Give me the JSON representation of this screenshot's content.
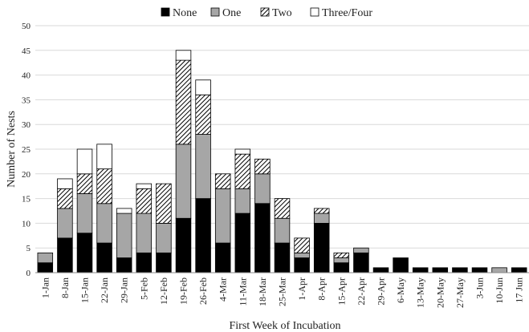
{
  "chart_data": {
    "type": "bar",
    "stacked": true,
    "title": "",
    "xlabel": "First Week of Incubation",
    "ylabel": "Number of Nests",
    "ylim": [
      0,
      50
    ],
    "yticks": [
      0,
      5,
      10,
      15,
      20,
      25,
      30,
      35,
      40,
      45,
      50
    ],
    "grid": true,
    "legend_position": "top",
    "categories": [
      "1-Jan",
      "8-Jan",
      "15-Jan",
      "22-Jan",
      "29-Jan",
      "5-Feb",
      "12-Feb",
      "19-Feb",
      "26-Feb",
      "4-Mar",
      "11-Mar",
      "18-Mar",
      "25-Mar",
      "1-Apr",
      "8-Apr",
      "15-Apr",
      "22-Apr",
      "29-Apr",
      "6-May",
      "13-May",
      "20-May",
      "27-May",
      "3-Jun",
      "10-Jun",
      "17 Jun"
    ],
    "series": [
      {
        "name": "None",
        "fill": "solid",
        "color": "#000000",
        "values": [
          2,
          7,
          8,
          6,
          3,
          4,
          4,
          11,
          15,
          6,
          12,
          14,
          6,
          3,
          10,
          2,
          4,
          1,
          3,
          1,
          1,
          1,
          1,
          0,
          1
        ]
      },
      {
        "name": "One",
        "fill": "solid",
        "color": "#a6a6a6",
        "values": [
          2,
          6,
          8,
          8,
          9,
          8,
          6,
          15,
          13,
          11,
          5,
          6,
          5,
          1,
          2,
          1,
          1,
          0,
          0,
          0,
          0,
          0,
          0,
          1,
          0
        ]
      },
      {
        "name": "Two",
        "fill": "hatch",
        "color": "#000000",
        "values": [
          0,
          4,
          4,
          7,
          0,
          5,
          8,
          17,
          8,
          3,
          7,
          3,
          4,
          3,
          1,
          1,
          0,
          0,
          0,
          0,
          0,
          0,
          0,
          0,
          0
        ]
      },
      {
        "name": "Three/Four",
        "fill": "solid",
        "color": "#ffffff",
        "values": [
          0,
          2,
          5,
          5,
          1,
          1,
          0,
          2,
          3,
          0,
          1,
          0,
          0,
          0,
          0,
          0,
          0,
          0,
          0,
          0,
          0,
          0,
          0,
          0,
          0
        ]
      }
    ]
  }
}
